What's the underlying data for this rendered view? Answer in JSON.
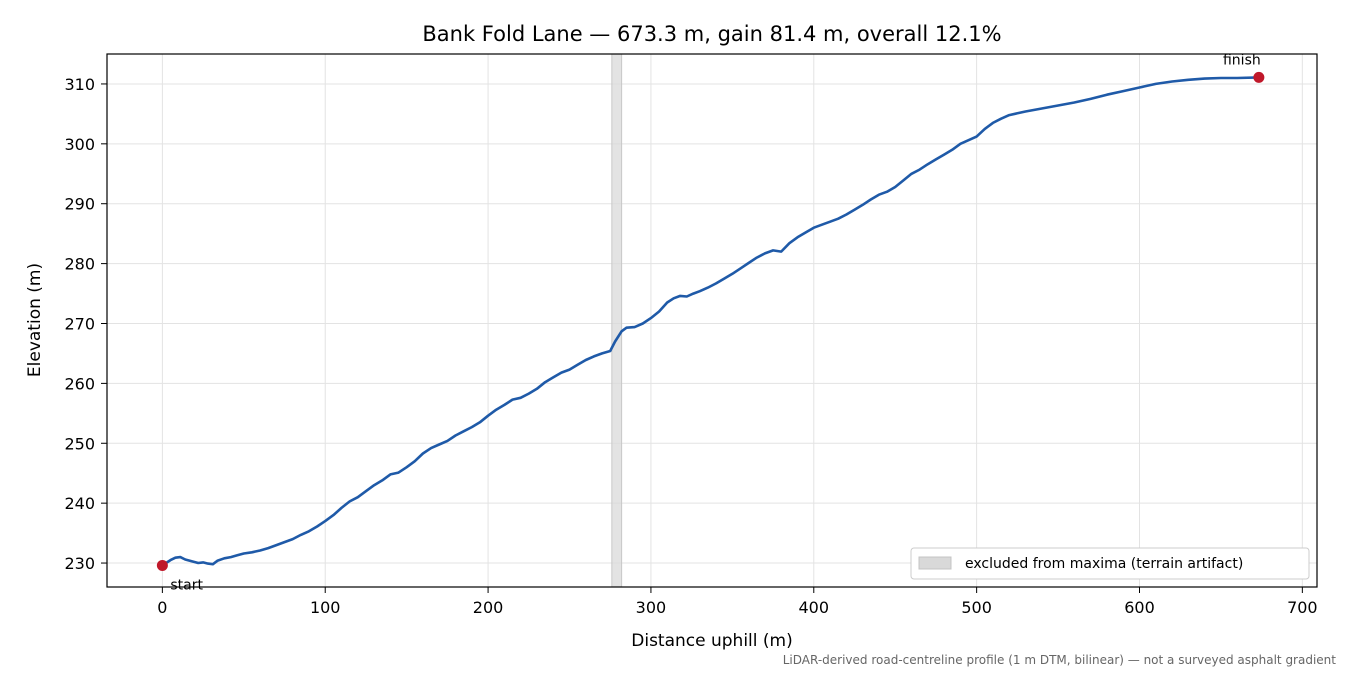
{
  "chart_data": {
    "type": "line",
    "title": "Bank Fold Lane — 673.3 m, gain 81.4 m, overall 12.1%",
    "xlabel": "Distance uphill (m)",
    "ylabel": "Elevation (m)",
    "xlim": [
      -34,
      709
    ],
    "ylim": [
      226,
      315
    ],
    "xticks": [
      0,
      100,
      200,
      300,
      400,
      500,
      600,
      700
    ],
    "yticks": [
      230,
      240,
      250,
      260,
      270,
      280,
      290,
      300,
      310
    ],
    "grid": true,
    "legend_position": "lower-right",
    "colors": {
      "line": "#1f5aa8",
      "endpoints": "#c0182a",
      "excluded": "#d9d9d9"
    },
    "series": [
      {
        "x": [
          0,
          5,
          8,
          11,
          14,
          18,
          22,
          25,
          28,
          31,
          34,
          38,
          42,
          46,
          50,
          55,
          60,
          65,
          70,
          75,
          80,
          85,
          90,
          95,
          100,
          105,
          110,
          115,
          120,
          125,
          130,
          135,
          140,
          145,
          150,
          155,
          160,
          165,
          170,
          175,
          180,
          185,
          190,
          195,
          200,
          205,
          210,
          215,
          220,
          225,
          230,
          235,
          240,
          245,
          250,
          255,
          260,
          265,
          270,
          275,
          278,
          282,
          285,
          290,
          295,
          300,
          305,
          310,
          314,
          318,
          322,
          326,
          330,
          335,
          340,
          345,
          350,
          355,
          360,
          365,
          370,
          375,
          380,
          385,
          390,
          395,
          400,
          405,
          410,
          415,
          420,
          425,
          430,
          435,
          440,
          445,
          450,
          455,
          460,
          465,
          470,
          475,
          480,
          485,
          490,
          495,
          500,
          505,
          510,
          515,
          520,
          530,
          540,
          550,
          560,
          570,
          580,
          590,
          600,
          610,
          620,
          630,
          640,
          650,
          660,
          673.3
        ],
        "y": [
          229.6,
          230.5,
          230.9,
          231.0,
          230.6,
          230.3,
          230.0,
          230.1,
          229.9,
          229.8,
          230.4,
          230.8,
          231.0,
          231.3,
          231.6,
          231.8,
          232.1,
          232.5,
          233.0,
          233.5,
          234.0,
          234.7,
          235.3,
          236.1,
          237.0,
          238.0,
          239.2,
          240.3,
          241.0,
          242.0,
          243.0,
          243.8,
          244.8,
          245.1,
          246.0,
          247.0,
          248.3,
          249.2,
          249.8,
          250.4,
          251.3,
          252.0,
          252.7,
          253.5,
          254.6,
          255.6,
          256.4,
          257.3,
          257.6,
          258.3,
          259.1,
          260.2,
          261.0,
          261.8,
          262.3,
          263.1,
          263.9,
          264.5,
          265.0,
          265.4,
          267.0,
          268.7,
          269.3,
          269.4,
          270.0,
          270.9,
          272.0,
          273.5,
          274.2,
          274.6,
          274.5,
          275.0,
          275.4,
          276.0,
          276.7,
          277.5,
          278.3,
          279.2,
          280.1,
          281.0,
          281.7,
          282.2,
          282.0,
          283.4,
          284.4,
          285.2,
          286.0,
          286.5,
          287.0,
          287.5,
          288.2,
          289.0,
          289.8,
          290.7,
          291.5,
          292.0,
          292.8,
          293.9,
          295.0,
          295.7,
          296.6,
          297.4,
          298.2,
          299.0,
          300.0,
          300.6,
          301.2,
          302.5,
          303.5,
          304.2,
          304.8,
          305.4,
          305.9,
          306.4,
          306.9,
          307.5,
          308.2,
          308.8,
          309.4,
          310.0,
          310.4,
          310.7,
          310.9,
          311.0,
          311.0,
          311.1
        ]
      }
    ],
    "endpoints": [
      {
        "label": "start",
        "x": 0,
        "y": 229.6
      },
      {
        "label": "finish",
        "x": 673.3,
        "y": 311.1
      }
    ],
    "excluded_band": {
      "x0": 276,
      "x1": 282,
      "label": "excluded from maxima (terrain artifact)"
    },
    "footnote": "LiDAR-derived road-centreline profile (1 m DTM, bilinear) — not a surveyed asphalt gradient"
  }
}
